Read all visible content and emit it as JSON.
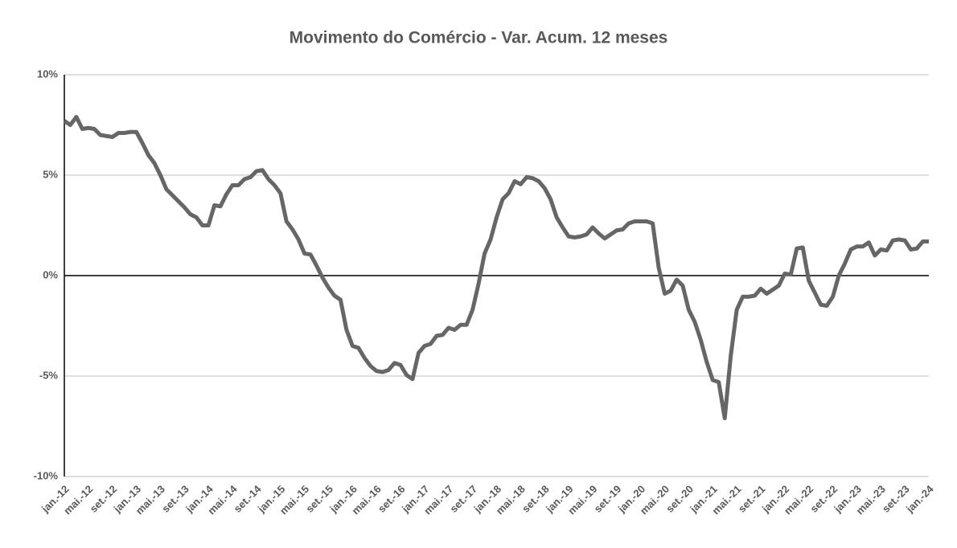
{
  "chart_data": {
    "type": "line",
    "title": "Movimento do Comércio - Var. Acum. 12 meses",
    "categories": [
      "jan.-12",
      null,
      null,
      null,
      "mai.-12",
      null,
      null,
      null,
      "set.-12",
      null,
      null,
      null,
      "jan.-13",
      null,
      null,
      null,
      "mai.-13",
      null,
      null,
      null,
      "set.-13",
      null,
      null,
      null,
      "jan.-14",
      null,
      null,
      null,
      "mai.-14",
      null,
      null,
      null,
      "set.-14",
      null,
      null,
      null,
      "jan.-15",
      null,
      null,
      null,
      "mai.-15",
      null,
      null,
      null,
      "set.-15",
      null,
      null,
      null,
      "jan.-16",
      null,
      null,
      null,
      "mai.-16",
      null,
      null,
      null,
      "set.-16",
      null,
      null,
      null,
      "jan.-17",
      null,
      null,
      null,
      "mai.-17",
      null,
      null,
      null,
      "set.-17",
      null,
      null,
      null,
      "jan.-18",
      null,
      null,
      null,
      "mai.-18",
      null,
      null,
      null,
      "set.-18",
      null,
      null,
      null,
      "jan.-19",
      null,
      null,
      null,
      "mai.-19",
      null,
      null,
      null,
      "set.-19",
      null,
      null,
      null,
      "jan.-20",
      null,
      null,
      null,
      "mai.-20",
      null,
      null,
      null,
      "set.-20",
      null,
      null,
      null,
      "jan.-21",
      null,
      null,
      null,
      "mai.-21",
      null,
      null,
      null,
      "set.-21",
      null,
      null,
      null,
      "jan.-22",
      null,
      null,
      null,
      "mai.-22",
      null,
      null,
      null,
      "set.-22",
      null,
      null,
      null,
      "jan.-23",
      null,
      null,
      null,
      "mai.-23",
      null,
      null,
      null,
      "set.-23",
      null,
      null,
      null,
      "jan.-24"
    ],
    "values": [
      7.7,
      7.5,
      7.9,
      7.3,
      7.35,
      7.3,
      7.0,
      6.95,
      6.9,
      7.1,
      7.1,
      7.15,
      7.15,
      6.6,
      6.0,
      5.6,
      5.0,
      4.3,
      4.0,
      3.7,
      3.4,
      3.05,
      2.9,
      2.5,
      2.5,
      3.5,
      3.45,
      4.05,
      4.5,
      4.5,
      4.8,
      4.9,
      5.2,
      5.25,
      4.8,
      4.5,
      4.1,
      2.7,
      2.3,
      1.8,
      1.1,
      1.05,
      0.5,
      -0.1,
      -0.6,
      -1.0,
      -1.2,
      -2.7,
      -3.5,
      -3.6,
      -4.1,
      -4.5,
      -4.75,
      -4.8,
      -4.7,
      -4.35,
      -4.45,
      -4.95,
      -5.15,
      -3.85,
      -3.5,
      -3.4,
      -3.0,
      -2.95,
      -2.6,
      -2.7,
      -2.45,
      -2.45,
      -1.7,
      -0.4,
      1.1,
      1.8,
      2.9,
      3.8,
      4.1,
      4.7,
      4.55,
      4.9,
      4.85,
      4.7,
      4.35,
      3.8,
      2.9,
      2.4,
      1.95,
      1.9,
      1.95,
      2.05,
      2.4,
      2.1,
      1.85,
      2.05,
      2.25,
      2.3,
      2.6,
      2.7,
      2.7,
      2.7,
      2.6,
      0.4,
      -0.9,
      -0.75,
      -0.2,
      -0.5,
      -1.7,
      -2.3,
      -3.2,
      -4.3,
      -5.2,
      -5.3,
      -7.1,
      -4.0,
      -1.7,
      -1.05,
      -1.05,
      -1.0,
      -0.65,
      -0.9,
      -0.7,
      -0.5,
      0.1,
      0.05,
      1.35,
      1.4,
      -0.25,
      -0.85,
      -1.45,
      -1.5,
      -1.05,
      0.0,
      0.6,
      1.3,
      1.45,
      1.45,
      1.65,
      1.0,
      1.3,
      1.25,
      1.75,
      1.8,
      1.75,
      1.3,
      1.35,
      1.7,
      1.7
    ],
    "color": "#666666",
    "ylim": [
      -10,
      10
    ],
    "yticks": [
      {
        "value": -10,
        "label": "-10%"
      },
      {
        "value": -5,
        "label": "-5%"
      },
      {
        "value": 0,
        "label": "0%"
      },
      {
        "value": 5,
        "label": "5%"
      },
      {
        "value": 10,
        "label": "10%"
      }
    ],
    "grid": true
  }
}
